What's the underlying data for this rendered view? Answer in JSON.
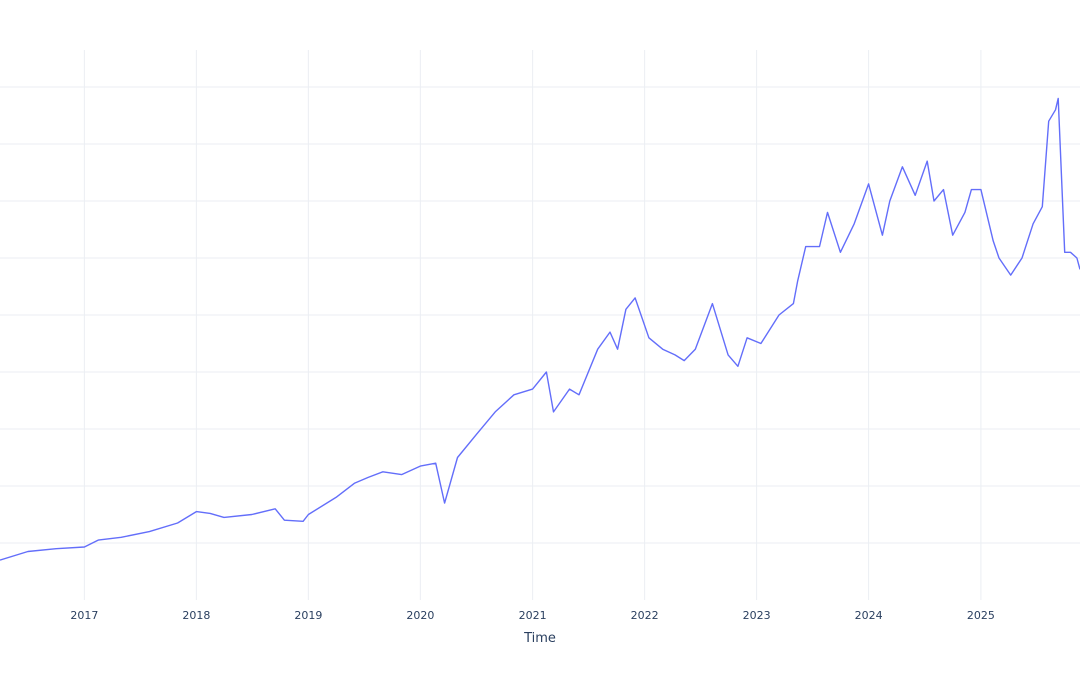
{
  "chart_data": {
    "type": "line",
    "title": "",
    "xlabel": "Time",
    "ylabel": "",
    "grid": true,
    "xlim": [
      "2016-04-01",
      "2025-11-20"
    ],
    "ylim": [
      0,
      1
    ],
    "x_ticks": [
      "2017",
      "2018",
      "2019",
      "2020",
      "2021",
      "2022",
      "2023",
      "2024",
      "2025"
    ],
    "y_grid_values": [
      0.1,
      0.2,
      0.3,
      0.4,
      0.5,
      0.6,
      0.7,
      0.8,
      0.9
    ],
    "series": [
      {
        "color": "#636efa",
        "x": [
          "2016-04-01",
          "2016-07-01",
          "2016-10-01",
          "2017-01-01",
          "2017-02-15",
          "2017-05-01",
          "2017-08-01",
          "2017-11-01",
          "2018-01-01",
          "2018-02-15",
          "2018-04-01",
          "2018-07-01",
          "2018-09-15",
          "2018-10-15",
          "2018-12-15",
          "2019-01-01",
          "2019-04-01",
          "2019-06-01",
          "2019-07-15",
          "2019-09-01",
          "2019-11-01",
          "2020-01-01",
          "2020-02-20",
          "2020-03-20",
          "2020-05-01",
          "2020-07-01",
          "2020-09-01",
          "2020-11-01",
          "2021-01-01",
          "2021-02-15",
          "2021-03-10",
          "2021-05-01",
          "2021-06-01",
          "2021-08-01",
          "2021-09-10",
          "2021-10-05",
          "2021-11-01",
          "2021-12-01",
          "2022-01-15",
          "2022-03-01",
          "2022-04-10",
          "2022-05-10",
          "2022-06-15",
          "2022-08-10",
          "2022-09-30",
          "2022-11-01",
          "2022-12-01",
          "2023-01-15",
          "2023-03-15",
          "2023-05-01",
          "2023-05-15",
          "2023-06-10",
          "2023-07-25",
          "2023-08-20",
          "2023-10-01",
          "2023-11-15",
          "2024-01-01",
          "2024-02-15",
          "2024-03-10",
          "2024-04-20",
          "2024-06-01",
          "2024-07-10",
          "2024-08-01",
          "2024-09-01",
          "2024-10-01",
          "2024-11-10",
          "2024-12-01",
          "2025-01-01",
          "2025-02-10",
          "2025-03-01",
          "2025-04-08",
          "2025-05-15",
          "2025-06-20",
          "2025-07-20",
          "2025-08-10",
          "2025-09-01",
          "2025-09-10",
          "2025-10-01",
          "2025-10-20",
          "2025-11-10",
          "2025-11-20"
        ],
        "y": [
          0.07,
          0.085,
          0.09,
          0.093,
          0.105,
          0.11,
          0.12,
          0.135,
          0.155,
          0.152,
          0.145,
          0.15,
          0.16,
          0.14,
          0.138,
          0.15,
          0.18,
          0.205,
          0.215,
          0.225,
          0.22,
          0.235,
          0.24,
          0.17,
          0.25,
          0.29,
          0.33,
          0.36,
          0.37,
          0.4,
          0.33,
          0.37,
          0.36,
          0.44,
          0.47,
          0.44,
          0.51,
          0.53,
          0.46,
          0.44,
          0.43,
          0.42,
          0.44,
          0.52,
          0.43,
          0.41,
          0.46,
          0.45,
          0.5,
          0.52,
          0.56,
          0.62,
          0.62,
          0.68,
          0.61,
          0.66,
          0.73,
          0.64,
          0.7,
          0.76,
          0.71,
          0.77,
          0.7,
          0.72,
          0.64,
          0.68,
          0.72,
          0.72,
          0.63,
          0.6,
          0.57,
          0.6,
          0.66,
          0.69,
          0.84,
          0.86,
          0.88,
          0.61,
          0.61,
          0.6,
          0.58
        ]
      }
    ]
  }
}
